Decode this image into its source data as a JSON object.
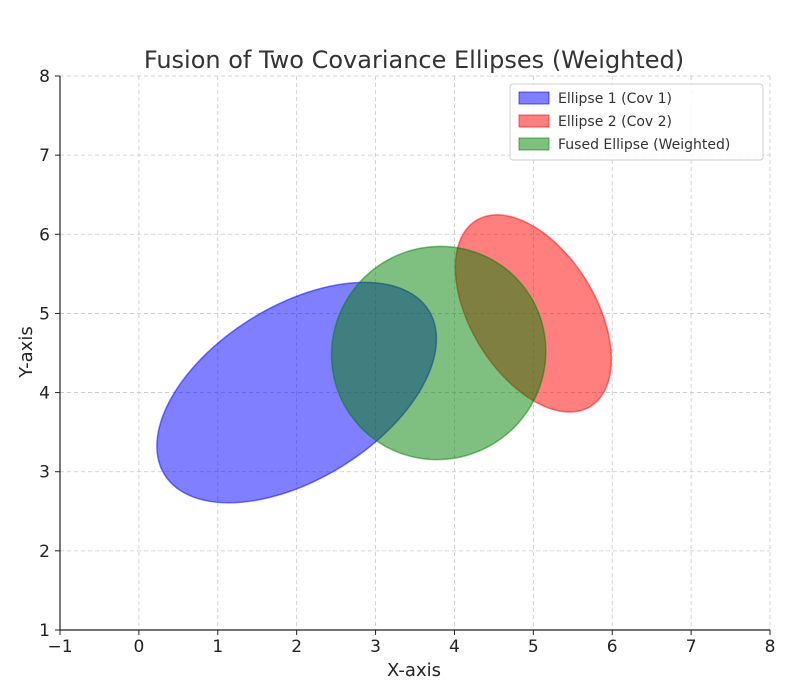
{
  "chart_data": {
    "type": "scatter",
    "title": "Fusion of Two Covariance Ellipses (Weighted)",
    "xlabel": "X-axis",
    "ylabel": "Y-axis",
    "xlim": [
      -1,
      8
    ],
    "ylim": [
      1,
      8
    ],
    "x_ticks": [
      "−1",
      "0",
      "1",
      "2",
      "3",
      "4",
      "5",
      "6",
      "7",
      "8"
    ],
    "y_ticks": [
      "1",
      "2",
      "3",
      "4",
      "5",
      "6",
      "7",
      "8"
    ],
    "grid": true,
    "legend_position": "top-right",
    "series": [
      {
        "name": "Ellipse 1 (Cov 1)",
        "color": "#0000ff",
        "center": [
          2.0,
          4.0
        ],
        "width": 3.94,
        "height": 2.19,
        "angle_deg": 31.7
      },
      {
        "name": "Ellipse 2 (Cov 2)",
        "color": "#ff0000",
        "center": [
          5.0,
          5.0
        ],
        "width": 2.76,
        "height": 1.58,
        "angle_deg": -58.3
      },
      {
        "name": "Fused Ellipse (Weighted)",
        "color": "#008000",
        "center": [
          3.8,
          4.5
        ],
        "width": 2.73,
        "height": 2.68,
        "angle_deg": 31.7
      }
    ]
  }
}
